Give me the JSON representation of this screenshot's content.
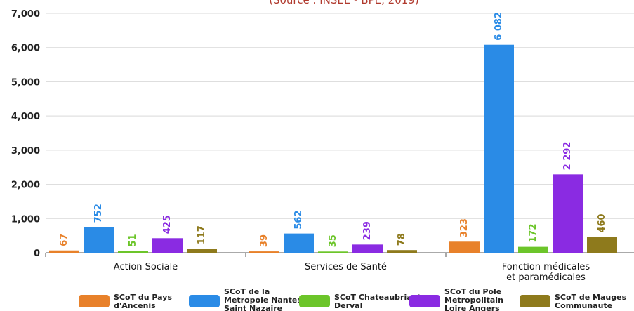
{
  "chart_data": {
    "type": "bar",
    "subtitle": "(Source : INSEE - BPE, 2019)",
    "categories": [
      [
        "Action Sociale"
      ],
      [
        "Services de Santé"
      ],
      [
        "Fonction médicales",
        "et paramédicales"
      ]
    ],
    "y_ticks": [
      "0",
      "1,000",
      "2,000",
      "3,000",
      "4,000",
      "5,000",
      "6,000",
      "7,000"
    ],
    "ylim": [
      0,
      7000
    ],
    "grid": true,
    "legend_position": "bottom",
    "series": [
      {
        "name": [
          "SCoT du Pays",
          "d'Ancenis"
        ],
        "color": "#e8812a",
        "values": [
          67,
          39,
          323
        ],
        "labels": [
          "67",
          "39",
          "323"
        ]
      },
      {
        "name": [
          "SCoT de la",
          "Metropole Nantes -",
          "Saint Nazaire"
        ],
        "color": "#2a8be6",
        "values": [
          752,
          562,
          6082
        ],
        "labels": [
          "752",
          "562",
          "6 082"
        ]
      },
      {
        "name": [
          "SCoT Chateaubriant",
          "Derval"
        ],
        "color": "#6cc52a",
        "values": [
          51,
          35,
          172
        ],
        "labels": [
          "51",
          "35",
          "172"
        ]
      },
      {
        "name": [
          "SCoT du Pole",
          "Metropolitain",
          "Loire Angers"
        ],
        "color": "#8a2be2",
        "values": [
          425,
          239,
          2292
        ],
        "labels": [
          "425",
          "239",
          "2 292"
        ]
      },
      {
        "name": [
          "SCoT de Mauges",
          "Communaute"
        ],
        "color": "#8e7a1c",
        "values": [
          117,
          78,
          460
        ],
        "labels": [
          "117",
          "78",
          "460"
        ]
      }
    ]
  }
}
